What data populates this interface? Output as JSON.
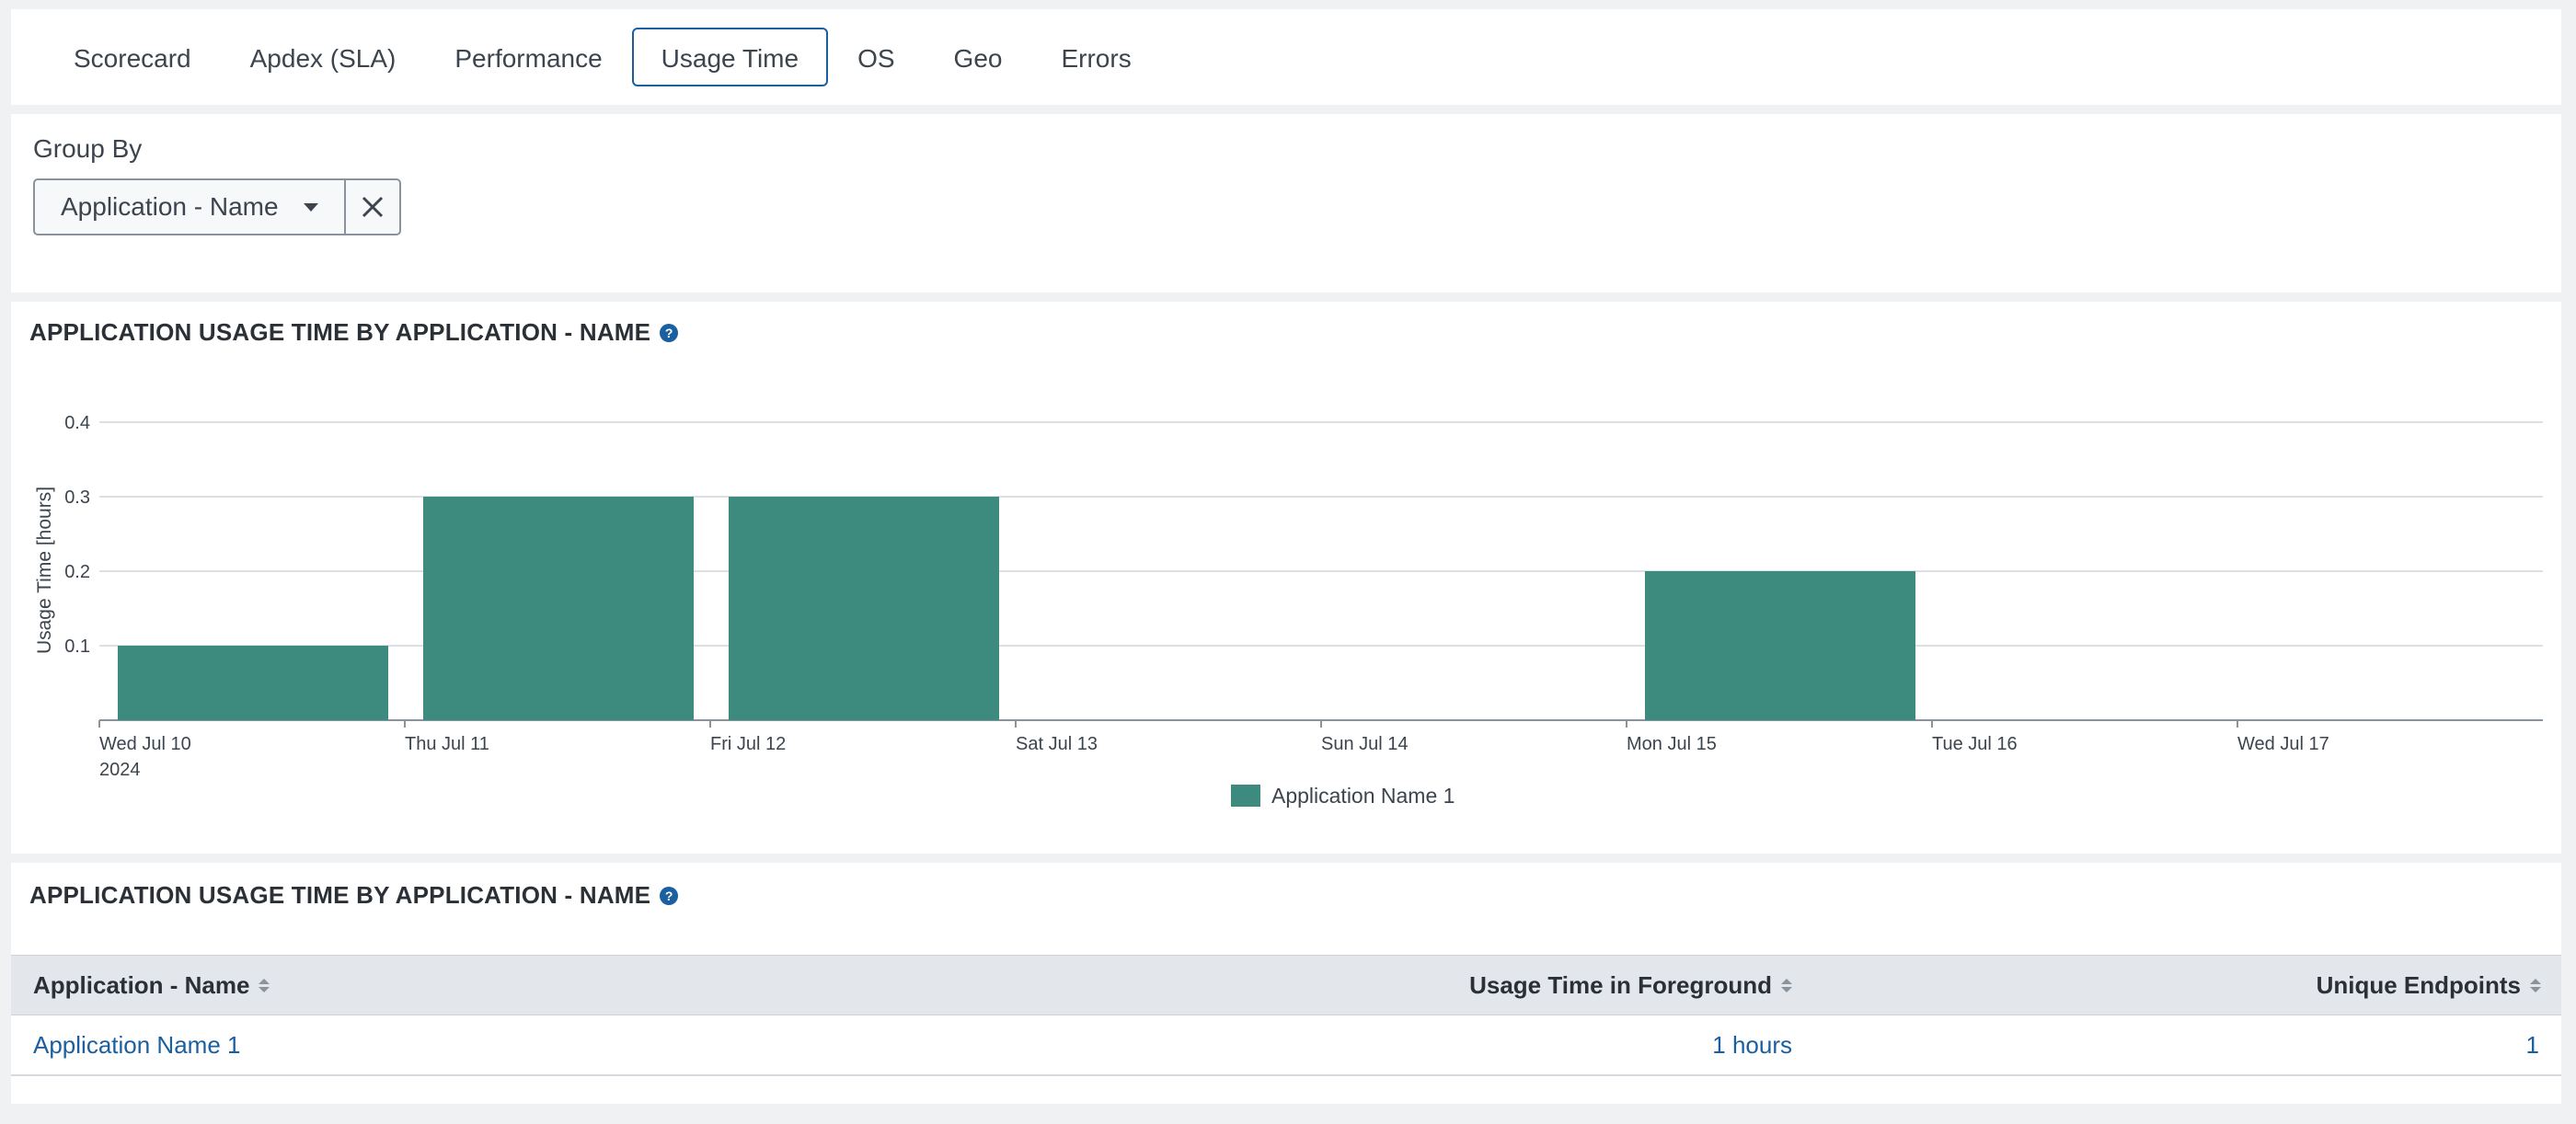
{
  "tabs": [
    {
      "label": "Scorecard",
      "active": false
    },
    {
      "label": "Apdex (SLA)",
      "active": false
    },
    {
      "label": "Performance",
      "active": false
    },
    {
      "label": "Usage Time",
      "active": true
    },
    {
      "label": "OS",
      "active": false
    },
    {
      "label": "Geo",
      "active": false
    },
    {
      "label": "Errors",
      "active": false
    }
  ],
  "group_by": {
    "label": "Group By",
    "selected": "Application - Name",
    "clear_icon": "close-icon"
  },
  "chart_panel": {
    "title": "APPLICATION USAGE TIME BY APPLICATION - NAME",
    "help_icon": "?"
  },
  "chart_data": {
    "type": "bar",
    "title": "APPLICATION USAGE TIME BY APPLICATION - NAME",
    "ylabel": "Usage Time [hours]",
    "xlabel": "",
    "ylim": [
      0,
      0.4
    ],
    "yticks": [
      "0.1",
      "0.2",
      "0.3",
      "0.4"
    ],
    "categories": [
      "Wed Jul 10",
      "Thu Jul 11",
      "Fri Jul 12",
      "Sat Jul 13",
      "Sun Jul 14",
      "Mon Jul 15",
      "Tue Jul 16",
      "Wed Jul 17"
    ],
    "year_label": "2024",
    "series": [
      {
        "name": "Application Name 1",
        "color": "#3d8a7e",
        "values": [
          0.1,
          0.3,
          0.3,
          0,
          0,
          0.2,
          0,
          0
        ]
      }
    ],
    "grid": true,
    "legend": "bottom-center"
  },
  "table_panel": {
    "title": "APPLICATION USAGE TIME BY APPLICATION - NAME",
    "help_icon": "?",
    "columns": [
      "Application - Name",
      "Usage Time in Foreground",
      "Unique Endpoints"
    ],
    "rows": [
      [
        "Application Name 1",
        "1 hours",
        "1"
      ]
    ]
  },
  "colors": {
    "accent": "#1a5fa0",
    "bar": "#3d8a7e",
    "header_bg": "#e3e6ea"
  }
}
